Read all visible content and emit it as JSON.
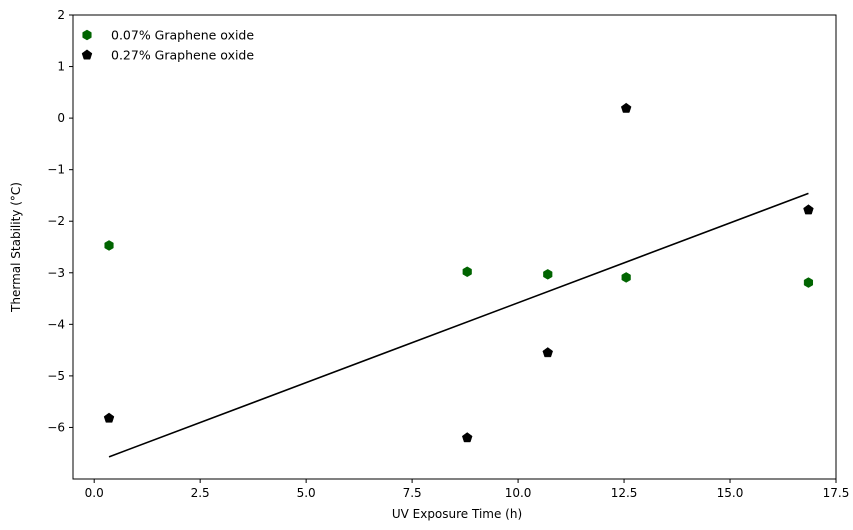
{
  "chart_data": {
    "type": "scatter",
    "xlabel": "UV Exposure Time (h)",
    "ylabel": "Thermal Stability (°C)",
    "xlim": [
      -0.5,
      17.5
    ],
    "ylim": [
      -7.0,
      2.0
    ],
    "x_ticks": [
      0.0,
      2.5,
      5.0,
      7.5,
      10.0,
      12.5,
      15.0,
      17.5
    ],
    "x_tick_labels": [
      "0.0",
      "2.5",
      "5.0",
      "7.5",
      "10.0",
      "12.5",
      "15.0",
      "17.5"
    ],
    "y_ticks": [
      -6,
      -5,
      -4,
      -3,
      -2,
      -1,
      0,
      1,
      2
    ],
    "y_tick_labels": [
      "−6",
      "−5",
      "−4",
      "−3",
      "−2",
      "−1",
      "0",
      "1",
      "2"
    ],
    "grid": false,
    "legend_position": "top-left",
    "series": [
      {
        "name": "0.07% Graphene oxide",
        "color": "#006400",
        "marker": "hexagon",
        "x": [
          0.35,
          8.8,
          10.7,
          12.55,
          16.85
        ],
        "y": [
          -2.47,
          -2.98,
          -3.03,
          -3.09,
          -3.19
        ]
      },
      {
        "name": "0.27% Graphene oxide",
        "color": "#000000",
        "marker": "pentagon",
        "x": [
          0.35,
          8.8,
          10.7,
          12.55,
          16.85
        ],
        "y": [
          -5.82,
          -6.2,
          -4.55,
          0.19,
          -1.78
        ]
      }
    ],
    "trend_line": {
      "color": "#000000",
      "x": [
        0.35,
        16.85
      ],
      "y": [
        -6.57,
        -1.46
      ]
    }
  }
}
